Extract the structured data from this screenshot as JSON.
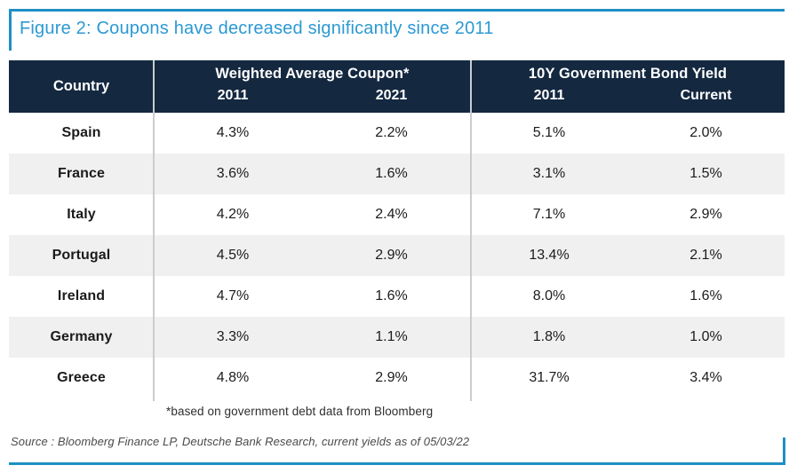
{
  "figure": {
    "title": "Figure 2: Coupons have decreased significantly since 2011",
    "title_color": "#2b99d3",
    "rule_color": "#1d90c4"
  },
  "table": {
    "header": {
      "country_label": "Country",
      "bg_color": "#142840",
      "text_color": "#ffffff",
      "groups": [
        {
          "label": "Weighted Average Coupon*",
          "columns": [
            "2011",
            "2021"
          ]
        },
        {
          "label": "10Y Government Bond Yield",
          "columns": [
            "2011",
            "Current"
          ]
        }
      ]
    },
    "alt_row_color": "#f0f0f0",
    "rows": [
      {
        "country": "Spain",
        "values": [
          "4.3%",
          "2.2%",
          "5.1%",
          "2.0%"
        ]
      },
      {
        "country": "France",
        "values": [
          "3.6%",
          "1.6%",
          "3.1%",
          "1.5%"
        ]
      },
      {
        "country": "Italy",
        "values": [
          "4.2%",
          "2.4%",
          "7.1%",
          "2.9%"
        ]
      },
      {
        "country": "Portugal",
        "values": [
          "4.5%",
          "2.9%",
          "13.4%",
          "2.1%"
        ]
      },
      {
        "country": "Ireland",
        "values": [
          "4.7%",
          "1.6%",
          "8.0%",
          "1.6%"
        ]
      },
      {
        "country": "Germany",
        "values": [
          "3.3%",
          "1.1%",
          "1.8%",
          "1.0%"
        ]
      },
      {
        "country": "Greece",
        "values": [
          "4.8%",
          "2.9%",
          "31.7%",
          "3.4%"
        ]
      }
    ]
  },
  "footnote": "*based on government debt data from Bloomberg",
  "source": "Source : Bloomberg Finance LP, Deutsche Bank Research, current yields as of 05/03/22",
  "chart_data": {
    "type": "table",
    "title": "Figure 2: Coupons have decreased significantly since 2011",
    "categories": [
      "Spain",
      "France",
      "Italy",
      "Portugal",
      "Ireland",
      "Germany",
      "Greece"
    ],
    "unit": "%",
    "series": [
      {
        "name": "Weighted Average Coupon 2011",
        "values": [
          4.3,
          3.6,
          4.2,
          4.5,
          4.7,
          3.3,
          4.8
        ]
      },
      {
        "name": "Weighted Average Coupon 2021",
        "values": [
          2.2,
          1.6,
          2.4,
          2.9,
          1.6,
          1.1,
          2.9
        ]
      },
      {
        "name": "10Y Government Bond Yield 2011",
        "values": [
          5.1,
          3.1,
          7.1,
          13.4,
          8.0,
          1.8,
          31.7
        ]
      },
      {
        "name": "10Y Government Bond Yield Current",
        "values": [
          2.0,
          1.5,
          2.9,
          2.1,
          1.6,
          1.0,
          3.4
        ]
      }
    ],
    "footnote": "*based on government debt data from Bloomberg",
    "source": "Source : Bloomberg Finance LP, Deutsche Bank Research, current yields as of 05/03/22"
  }
}
